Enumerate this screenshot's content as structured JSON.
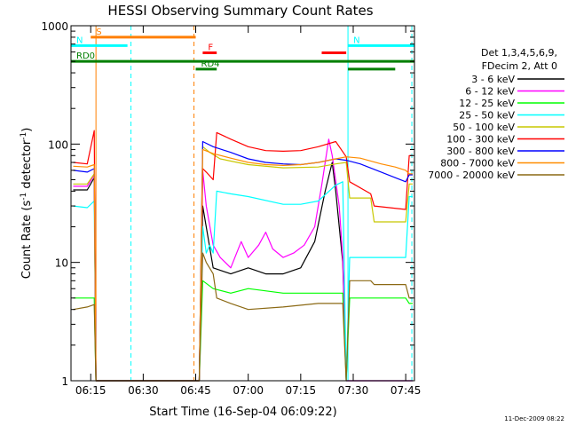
{
  "chart_data": {
    "type": "line",
    "title": "HESSI Observing Summary Count Rates",
    "xlabel": "Start Time (16-Sep-04 06:09:22)",
    "ylabel_main": "Count Rate (s",
    "ylabel_sup1": "-1",
    "ylabel_mid": " detector",
    "ylabel_sup2": "-1",
    "ylabel_end": ")",
    "yscale": "log",
    "ylim": [
      1,
      1000
    ],
    "xlim": [
      "06:09:22",
      "07:47:30"
    ],
    "x_ticks": [
      "06:15",
      "06:30",
      "06:45",
      "07:00",
      "07:15",
      "07:30",
      "07:45"
    ],
    "y_ticks": [
      "1",
      "10",
      "100",
      "1000"
    ],
    "legend_title": [
      "Det 1,3,4,5,6,9,",
      "FDecim 2, Att 0"
    ],
    "legend_position": "right",
    "series": [
      {
        "name": "3 - 6 keV",
        "color": "#000000",
        "points": [
          [
            "06:10",
            41
          ],
          [
            "06:14",
            41
          ],
          [
            "06:16",
            52
          ],
          [
            "06:16:30",
            1
          ],
          [
            "06:46",
            1
          ],
          [
            "06:47",
            30
          ],
          [
            "06:50",
            9
          ],
          [
            "06:55",
            8
          ],
          [
            "07:00",
            9
          ],
          [
            "07:05",
            8
          ],
          [
            "07:10",
            8
          ],
          [
            "07:15",
            9
          ],
          [
            "07:19",
            15
          ],
          [
            "07:22",
            40
          ],
          [
            "07:24",
            70
          ],
          [
            "07:25",
            40
          ],
          [
            "07:27",
            10
          ],
          [
            "07:28",
            1
          ],
          [
            "07:47",
            1
          ]
        ]
      },
      {
        "name": "6 - 12 keV",
        "color": "#ff00ff",
        "points": [
          [
            "06:10",
            44
          ],
          [
            "06:14",
            44
          ],
          [
            "06:16",
            55
          ],
          [
            "06:16:30",
            1
          ],
          [
            "06:46",
            1
          ],
          [
            "06:47",
            60
          ],
          [
            "06:48",
            30
          ],
          [
            "06:50",
            14
          ],
          [
            "06:52",
            11
          ],
          [
            "06:55",
            9
          ],
          [
            "06:58",
            15
          ],
          [
            "07:00",
            11
          ],
          [
            "07:03",
            14
          ],
          [
            "07:05",
            18
          ],
          [
            "07:07",
            13
          ],
          [
            "07:10",
            11
          ],
          [
            "07:13",
            12
          ],
          [
            "07:16",
            14
          ],
          [
            "07:19",
            20
          ],
          [
            "07:21",
            45
          ],
          [
            "07:23",
            110
          ],
          [
            "07:24",
            80
          ],
          [
            "07:26",
            30
          ],
          [
            "07:27",
            11
          ],
          [
            "07:28",
            1
          ],
          [
            "07:47",
            1
          ]
        ]
      },
      {
        "name": "12 - 25 keV",
        "color": "#00ff00",
        "points": [
          [
            "06:10",
            5
          ],
          [
            "06:14",
            5
          ],
          [
            "06:16",
            5
          ],
          [
            "06:16:30",
            1
          ],
          [
            "06:46",
            1
          ],
          [
            "06:47",
            7
          ],
          [
            "06:50",
            6
          ],
          [
            "06:55",
            5.5
          ],
          [
            "07:00",
            6
          ],
          [
            "07:10",
            5.5
          ],
          [
            "07:20",
            5.5
          ],
          [
            "07:27",
            5.5
          ],
          [
            "07:28",
            1
          ],
          [
            "07:29",
            5
          ],
          [
            "07:45",
            5
          ],
          [
            "07:46",
            4.5
          ],
          [
            "07:47",
            4.5
          ]
        ]
      },
      {
        "name": "25 - 50 keV",
        "color": "#00ffff",
        "points": [
          [
            "06:10",
            30
          ],
          [
            "06:14",
            29
          ],
          [
            "06:16",
            33
          ],
          [
            "06:16:30",
            1
          ],
          [
            "06:46",
            1
          ],
          [
            "06:47",
            20
          ],
          [
            "06:48",
            12
          ],
          [
            "06:49",
            14
          ],
          [
            "06:50",
            12
          ],
          [
            "06:51",
            40
          ],
          [
            "06:55",
            38
          ],
          [
            "07:00",
            36
          ],
          [
            "07:10",
            31
          ],
          [
            "07:15",
            31
          ],
          [
            "07:20",
            33
          ],
          [
            "07:25",
            45
          ],
          [
            "07:27",
            48
          ],
          [
            "07:28",
            1
          ],
          [
            "07:29",
            11
          ],
          [
            "07:45",
            11
          ],
          [
            "07:46",
            36
          ],
          [
            "07:47",
            36
          ]
        ]
      },
      {
        "name": "50 - 100 keV",
        "color": "#c8c800",
        "points": [
          [
            "06:10",
            46
          ],
          [
            "06:14",
            46
          ],
          [
            "06:16",
            56
          ],
          [
            "06:16:30",
            1
          ],
          [
            "06:46",
            1
          ],
          [
            "06:47",
            95
          ],
          [
            "06:49",
            85
          ],
          [
            "06:52",
            75
          ],
          [
            "07:00",
            67
          ],
          [
            "07:10",
            63
          ],
          [
            "07:20",
            64
          ],
          [
            "07:25",
            68
          ],
          [
            "07:28",
            70
          ],
          [
            "07:29",
            35
          ],
          [
            "07:35",
            35
          ],
          [
            "07:36",
            22
          ],
          [
            "07:45",
            22
          ],
          [
            "07:46",
            46
          ],
          [
            "07:47",
            46
          ]
        ]
      },
      {
        "name": "100 - 300 keV",
        "color": "#ff0000",
        "points": [
          [
            "06:10",
            70
          ],
          [
            "06:14",
            68
          ],
          [
            "06:16",
            130
          ],
          [
            "06:16:30",
            1
          ],
          [
            "06:46",
            1
          ],
          [
            "06:47",
            62
          ],
          [
            "06:48",
            58
          ],
          [
            "06:50",
            50
          ],
          [
            "06:51",
            125
          ],
          [
            "06:55",
            110
          ],
          [
            "07:00",
            95
          ],
          [
            "07:05",
            88
          ],
          [
            "07:10",
            87
          ],
          [
            "07:15",
            88
          ],
          [
            "07:20",
            95
          ],
          [
            "07:25",
            105
          ],
          [
            "07:28",
            78
          ],
          [
            "07:29",
            48
          ],
          [
            "07:35",
            38
          ],
          [
            "07:36",
            30
          ],
          [
            "07:45",
            28
          ],
          [
            "07:46",
            80
          ],
          [
            "07:47",
            80
          ]
        ]
      },
      {
        "name": "300 - 800 keV",
        "color": "#0000ff",
        "points": [
          [
            "06:10",
            60
          ],
          [
            "06:14",
            58
          ],
          [
            "06:16",
            62
          ],
          [
            "06:16:30",
            1
          ],
          [
            "06:46",
            1
          ],
          [
            "06:47",
            105
          ],
          [
            "06:50",
            95
          ],
          [
            "06:55",
            85
          ],
          [
            "07:00",
            75
          ],
          [
            "07:05",
            70
          ],
          [
            "07:10",
            68
          ],
          [
            "07:15",
            67
          ],
          [
            "07:20",
            70
          ],
          [
            "07:25",
            75
          ],
          [
            "07:28",
            73
          ],
          [
            "07:32",
            68
          ],
          [
            "07:38",
            58
          ],
          [
            "07:42",
            52
          ],
          [
            "07:45",
            48
          ],
          [
            "07:46",
            55
          ],
          [
            "07:47",
            55
          ]
        ]
      },
      {
        "name": "800 - 7000 keV",
        "color": "#ff8c00",
        "points": [
          [
            "06:10",
            65
          ],
          [
            "06:14",
            64
          ],
          [
            "06:16",
            67
          ],
          [
            "06:16:30",
            1
          ],
          [
            "06:46",
            1
          ],
          [
            "06:47",
            90
          ],
          [
            "06:50",
            83
          ],
          [
            "06:55",
            76
          ],
          [
            "07:00",
            70
          ],
          [
            "07:05",
            67
          ],
          [
            "07:10",
            66
          ],
          [
            "07:15",
            67
          ],
          [
            "07:20",
            70
          ],
          [
            "07:25",
            75
          ],
          [
            "07:28",
            78
          ],
          [
            "07:32",
            76
          ],
          [
            "07:38",
            68
          ],
          [
            "07:42",
            64
          ],
          [
            "07:45",
            60
          ],
          [
            "07:46",
            56
          ],
          [
            "07:47",
            56
          ]
        ]
      },
      {
        "name": "7000 - 20000 keV",
        "color": "#8b6914",
        "points": [
          [
            "06:10",
            4
          ],
          [
            "06:14",
            4.2
          ],
          [
            "06:16",
            4.4
          ],
          [
            "06:16:30",
            1
          ],
          [
            "06:46",
            1
          ],
          [
            "06:47",
            12
          ],
          [
            "06:48",
            10
          ],
          [
            "06:50",
            8
          ],
          [
            "06:51",
            5
          ],
          [
            "06:55",
            4.5
          ],
          [
            "07:00",
            4
          ],
          [
            "07:10",
            4.2
          ],
          [
            "07:20",
            4.5
          ],
          [
            "07:27",
            4.5
          ],
          [
            "07:28",
            1
          ],
          [
            "07:29",
            7
          ],
          [
            "07:35",
            7
          ],
          [
            "07:36",
            6.5
          ],
          [
            "07:45",
            6.5
          ],
          [
            "07:46",
            5
          ],
          [
            "07:47",
            5
          ]
        ]
      }
    ],
    "annotations": [
      {
        "label": "S",
        "color": "#ff7f00",
        "start": "06:15",
        "end": "06:45",
        "level": 800
      },
      {
        "label": "N",
        "color": "#00ffff",
        "start": "06:09:22",
        "end": "06:25:30",
        "level": 680
      },
      {
        "label": "N",
        "color": "#00ffff",
        "start": "07:28:30",
        "end": "07:47:30",
        "level": 680
      },
      {
        "label": "F",
        "color": "#ff0000",
        "start": "06:47",
        "end": "06:51",
        "level": 590
      },
      {
        "label": "",
        "color": "#ff0000",
        "start": "07:21",
        "end": "07:28",
        "level": 590
      },
      {
        "label": "RD0",
        "color": "#007f00",
        "start": "06:09:22",
        "end": "07:47:30",
        "level": 500
      },
      {
        "label": "RD4",
        "color": "#007f00",
        "start": "06:45",
        "end": "06:51",
        "level": 430
      },
      {
        "label": "",
        "color": "#007f00",
        "start": "07:28:30",
        "end": "07:42",
        "level": 430
      }
    ],
    "vertical_lines": [
      {
        "time": "06:16:30",
        "color": "#ff7f00",
        "style": "solid"
      },
      {
        "time": "06:26:30",
        "color": "#00ffff",
        "style": "dashed"
      },
      {
        "time": "06:44:30",
        "color": "#ff7f00",
        "style": "dashed"
      },
      {
        "time": "07:28:30",
        "color": "#00ffff",
        "style": "solid"
      },
      {
        "time": "07:46:45",
        "color": "#00ffff",
        "style": "dashed"
      }
    ],
    "footer_date": "11-Dec-2009 08:22"
  }
}
